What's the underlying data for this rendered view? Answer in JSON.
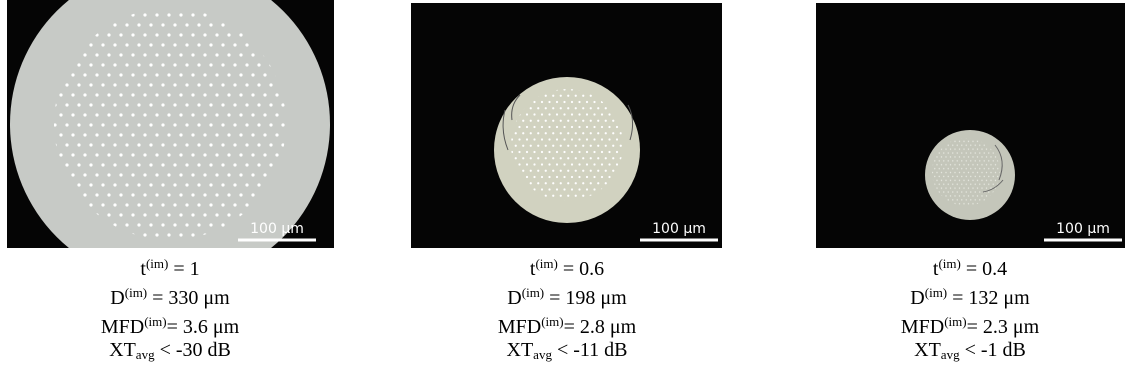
{
  "panels": [
    {
      "scale": "100 μm",
      "lines": [
        {
          "base": "t",
          "sup": "(im)",
          "rest": " = 1"
        },
        {
          "base": "D",
          "sup": "(im)",
          "rest": " = 330 μm"
        },
        {
          "base": "MFD",
          "sup": "(im)",
          "rest": "= 3.6 μm"
        },
        {
          "base": "XT",
          "sub": "avg",
          "rest": " < -30 dB"
        }
      ]
    },
    {
      "scale": "100 μm",
      "lines": [
        {
          "base": "t",
          "sup": "(im)",
          "rest": " = 0.6"
        },
        {
          "base": "D",
          "sup": "(im)",
          "rest": " = 198 μm"
        },
        {
          "base": "MFD",
          "sup": "(im)",
          "rest": "= 2.8 μm"
        },
        {
          "base": "XT",
          "sub": "avg",
          "rest": " < -11 dB"
        }
      ]
    },
    {
      "scale": "100 μm",
      "lines": [
        {
          "base": "t",
          "sup": "(im)",
          "rest": " = 0.4"
        },
        {
          "base": "D",
          "sup": "(im)",
          "rest": " = 132 μm"
        },
        {
          "base": "MFD",
          "sup": "(im)",
          "rest": "= 2.3 μm"
        },
        {
          "base": "XT",
          "sub": "avg",
          "rest": " < -1 dB"
        }
      ]
    }
  ]
}
